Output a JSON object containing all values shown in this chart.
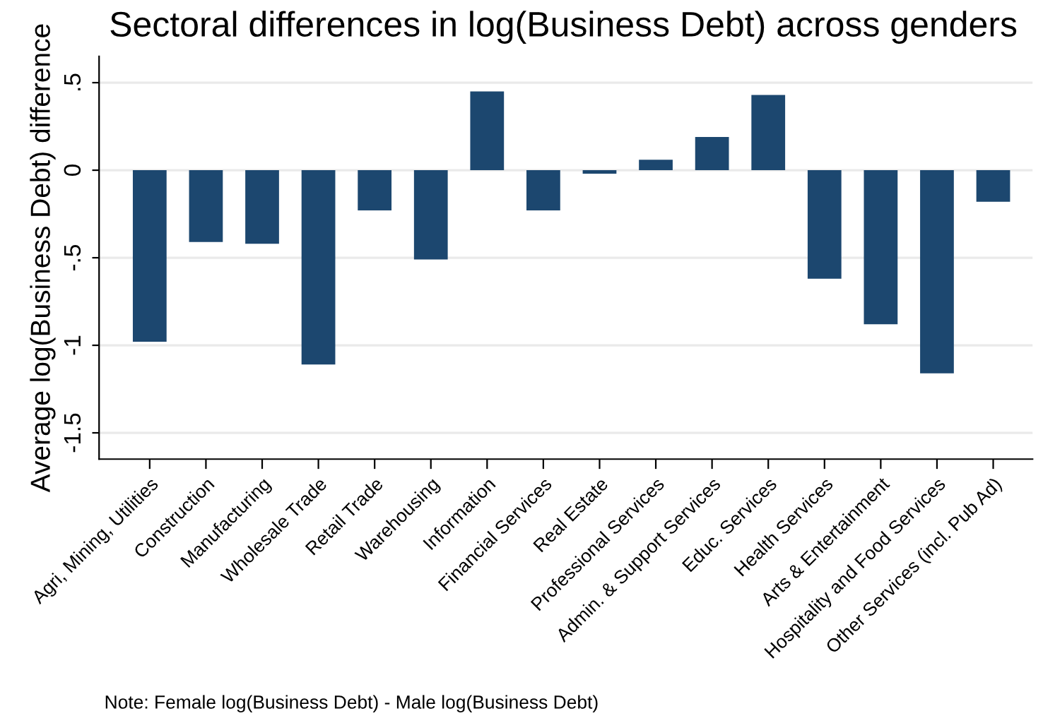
{
  "chart_data": {
    "type": "bar",
    "title": "Sectoral differences in log(Business Debt) across genders",
    "ylabel": "Average log(Business Debt) difference",
    "categories": [
      "Agri, Mining, Utilities",
      "Construction",
      "Manufacturing",
      "Wholesale Trade",
      "Retail Trade",
      "Warehousing",
      "Information",
      "Financial Services",
      "Real Estate",
      "Professional Services",
      "Admin. & Support Services",
      "Educ. Services",
      "Health Services",
      "Arts & Entertainment",
      "Hospitality and Food Services",
      "Other Services (incl. Pub Ad)"
    ],
    "values": [
      -0.98,
      -0.41,
      -0.42,
      -1.11,
      -0.23,
      -0.51,
      0.45,
      -0.23,
      -0.02,
      0.06,
      0.19,
      0.43,
      -0.62,
      -0.88,
      -1.16,
      -0.18
    ],
    "color": "#1c476f",
    "ylim": [
      -1.65,
      0.65
    ],
    "yticks": [
      {
        "value": -1.5,
        "label": "-1.5"
      },
      {
        "value": -1,
        "label": "-1"
      },
      {
        "value": -0.5,
        "label": "-.5"
      },
      0,
      {
        "value": 0.5,
        "label": ".5"
      }
    ],
    "grid": "y",
    "annotations": [
      "Note: Female log(Business Debt) - Male log(Business Debt)"
    ]
  }
}
